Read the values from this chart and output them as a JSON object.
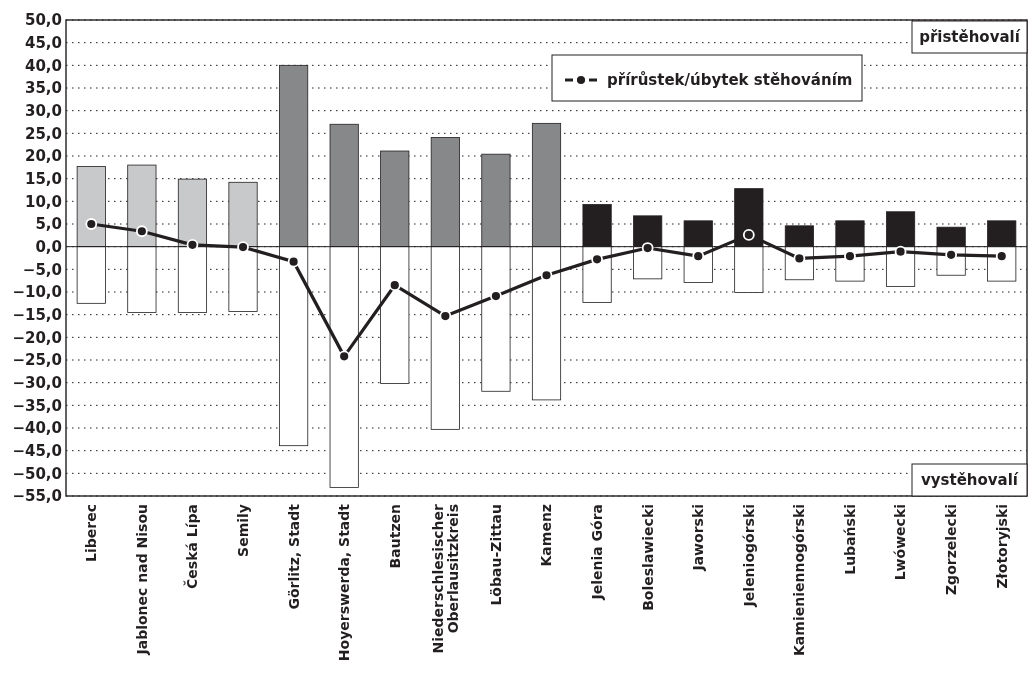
{
  "chart_data": {
    "type": "bar",
    "stacked": true,
    "categories": [
      "Liberec",
      "Jablonec nad Nisou",
      "Česká Lípa",
      "Semily",
      "Görlitz, Stadt",
      "Hoyerswerda, Stadt",
      "Bautzen",
      "Niederschlesischer Oberlausitzkreis",
      "Löbau-Zittau",
      "Kamenz",
      "Jelenia Góra",
      "Boleslawiecki",
      "Jaworski",
      "Jeleniogórski",
      "Kamieniennogórski",
      "Lubański",
      "Lwówecki",
      "Zgorzelecki",
      "Złotoryjski"
    ],
    "series": [
      {
        "colors": [
          "#c8c9cb",
          "#c8c9cb",
          "#c8c9cb",
          "#c8c9cb",
          "#87888a",
          "#87888a",
          "#87888a",
          "#87888a",
          "#87888a",
          "#87888a",
          "#231f20",
          "#231f20",
          "#231f20",
          "#231f20",
          "#231f20",
          "#231f20",
          "#231f20",
          "#231f20",
          "#231f20"
        ],
        "values": [
          17.7,
          18.0,
          14.9,
          14.2,
          40.0,
          27.0,
          21.1,
          24.1,
          20.4,
          27.2,
          9.3,
          6.8,
          5.7,
          12.8,
          4.6,
          5.7,
          7.7,
          4.3,
          5.7
        ]
      },
      {
        "color": "#ffffff",
        "values": [
          -12.5,
          -14.5,
          -14.5,
          -14.3,
          -43.9,
          -53.1,
          -30.2,
          -40.3,
          -31.9,
          -33.8,
          -12.3,
          -7.1,
          -7.9,
          -10.1,
          -7.3,
          -7.6,
          -8.8,
          -6.3,
          -7.6
        ]
      },
      {
        "type": "line",
        "name": "přírůstek/úbytek stěhováním",
        "color": "#231f20",
        "values": [
          5.0,
          3.4,
          0.4,
          -0.1,
          -3.3,
          -24.2,
          -8.5,
          -15.3,
          -10.9,
          -6.3,
          -2.8,
          -0.3,
          -2.1,
          2.6,
          -2.6,
          -2.1,
          -1.1,
          -1.8,
          -2.1
        ]
      }
    ],
    "marker": "circle",
    "line_style": "solid",
    "grid": "y",
    "legend": "top",
    "annotations": [
      "přistěhovalí",
      "vystěhovalí"
    ],
    "ylim": [
      -55,
      50
    ],
    "yticks": [
      {
        "value": 50,
        "label": "50,0"
      },
      {
        "value": 45,
        "label": "45,0"
      },
      {
        "value": 40,
        "label": "40,0"
      },
      {
        "value": 35,
        "label": "35,0"
      },
      {
        "value": 30,
        "label": "30,0"
      },
      {
        "value": 25,
        "label": "25,0"
      },
      {
        "value": 20,
        "label": "20,0"
      },
      {
        "value": 15,
        "label": "15,0"
      },
      {
        "value": 10,
        "label": "10,0"
      },
      {
        "value": 5,
        "label": "5,0"
      },
      {
        "value": 0,
        "label": "0,0"
      },
      {
        "value": -5,
        "label": "−5,0"
      },
      {
        "value": -10,
        "label": "−10,0"
      },
      {
        "value": -15,
        "label": "−15,0"
      },
      {
        "value": -20,
        "label": "−20,0"
      },
      {
        "value": -25,
        "label": "−25,0"
      },
      {
        "value": -30,
        "label": "−30,0"
      },
      {
        "value": -35,
        "label": "−35,0"
      },
      {
        "value": -40,
        "label": "−40,0"
      },
      {
        "value": -45,
        "label": "−45,0"
      },
      {
        "value": -50,
        "label": "−50,0"
      },
      {
        "value": -55,
        "label": "−55,0"
      }
    ]
  }
}
